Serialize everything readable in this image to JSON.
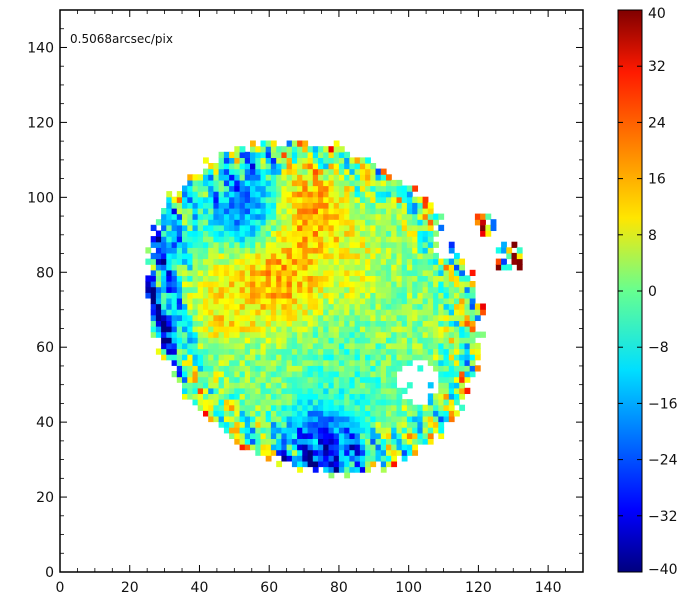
{
  "chart_data": {
    "type": "heatmap",
    "annotation": "0.5068arcsec/pix",
    "xlim": [
      0,
      150
    ],
    "ylim": [
      0,
      150
    ],
    "x_ticks": [
      0,
      20,
      40,
      60,
      80,
      100,
      120,
      140
    ],
    "y_ticks": [
      0,
      20,
      40,
      60,
      80,
      100,
      120,
      140
    ],
    "x_tick_labels": [
      "0",
      "20",
      "40",
      "60",
      "80",
      "100",
      "120",
      "140"
    ],
    "y_tick_labels": [
      "0",
      "20",
      "40",
      "60",
      "80",
      "100",
      "120",
      "140"
    ],
    "grid": false,
    "colormap": "jet",
    "colorbar": {
      "range": [
        -40,
        40
      ],
      "ticks": [
        40,
        32,
        24,
        16,
        8,
        0,
        -8,
        -16,
        -24,
        -32,
        -40
      ],
      "tick_labels": [
        "40",
        "32",
        "24",
        "16",
        "8",
        "0",
        "−8",
        "−16",
        "−24",
        "−32",
        "−40"
      ]
    },
    "footprint": {
      "shape": "tilted ellipse",
      "center": [
        72,
        70
      ],
      "semi_axes": [
        50,
        42
      ],
      "rotation_deg": -32,
      "extent_x": [
        17,
        133
      ],
      "extent_y": [
        25,
        117
      ]
    },
    "value_regions": [
      {
        "description": "strong negative patch",
        "center": [
          25,
          67
        ],
        "value": -38
      },
      {
        "description": "negative patch",
        "center": [
          75,
          32
        ],
        "value": -34
      },
      {
        "description": "negative patch",
        "center": [
          55,
          97
        ],
        "value": -30
      },
      {
        "description": "negative patch",
        "center": [
          25,
          87
        ],
        "value": -30
      },
      {
        "description": "positive patch",
        "center": [
          68,
          95
        ],
        "value": 28
      },
      {
        "description": "positive patch",
        "center": [
          62,
          78
        ],
        "value": 22
      },
      {
        "description": "positive patch",
        "center": [
          45,
          72
        ],
        "value": 16
      },
      {
        "description": "positive patch",
        "center": [
          80,
          82
        ],
        "value": 12
      },
      {
        "description": "mild negative",
        "center": [
          85,
          55
        ],
        "value": -6
      },
      {
        "description": "green core",
        "center": [
          90,
          65
        ],
        "value": 2
      }
    ]
  }
}
